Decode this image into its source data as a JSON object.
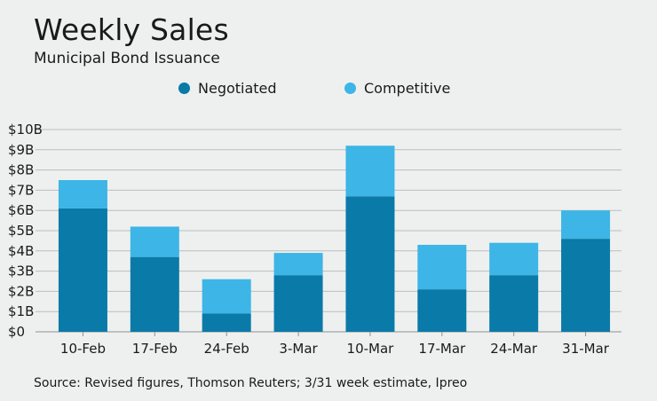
{
  "header": {
    "title": "Weekly Sales",
    "subtitle": "Municipal Bond Issuance"
  },
  "legend": {
    "items": [
      {
        "label": "Negotiated",
        "color": "#0a7aa8"
      },
      {
        "label": "Competitive",
        "color": "#3db5e6"
      }
    ]
  },
  "footer": {
    "source": "Source: Revised figures, Thomson Reuters; 3/31 week estimate, Ipreo"
  },
  "chart_data": {
    "type": "bar",
    "stacked": true,
    "title": "Weekly Sales",
    "subtitle": "Municipal Bond Issuance",
    "categories": [
      "10-Feb",
      "17-Feb",
      "24-Feb",
      "3-Mar",
      "10-Mar",
      "17-Mar",
      "24-Mar",
      "31-Mar"
    ],
    "series": [
      {
        "name": "Negotiated",
        "color": "#0a7aa8",
        "values": [
          6.1,
          3.7,
          0.9,
          2.8,
          6.7,
          2.1,
          2.8,
          4.6
        ]
      },
      {
        "name": "Competitive",
        "color": "#3db5e6",
        "values": [
          1.4,
          1.5,
          1.7,
          1.1,
          2.5,
          2.2,
          1.6,
          1.4
        ]
      }
    ],
    "yticks": [
      "$0",
      "$1B",
      "$2B",
      "$3B",
      "$4B",
      "$5B",
      "$6B",
      "$7B",
      "$8B",
      "$9B",
      "$10B"
    ],
    "ylim": [
      0,
      10
    ],
    "xlabel": "",
    "ylabel": "",
    "grid": true,
    "legend_position": "top"
  }
}
